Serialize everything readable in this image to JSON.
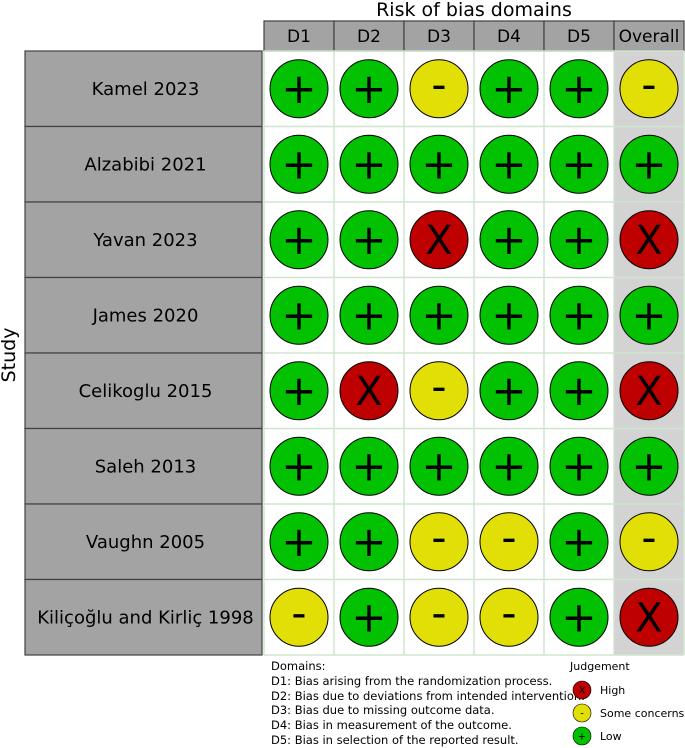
{
  "chart_data": {
    "type": "table",
    "title": "Risk of bias domains",
    "ylabel": "Study",
    "columns": [
      "D1",
      "D2",
      "D3",
      "D4",
      "D5",
      "Overall"
    ],
    "rows": [
      {
        "study": "Kamel 2023",
        "judgements": [
          "Low",
          "Low",
          "Some concerns",
          "Low",
          "Low",
          "Some concerns"
        ]
      },
      {
        "study": "Alzabibi 2021",
        "judgements": [
          "Low",
          "Low",
          "Low",
          "Low",
          "Low",
          "Low"
        ]
      },
      {
        "study": "Yavan 2023",
        "judgements": [
          "Low",
          "Low",
          "High",
          "Low",
          "Low",
          "High"
        ]
      },
      {
        "study": "James 2020",
        "judgements": [
          "Low",
          "Low",
          "Low",
          "Low",
          "Low",
          "Low"
        ]
      },
      {
        "study": "Celikoglu 2015",
        "judgements": [
          "Low",
          "High",
          "Some concerns",
          "Low",
          "Low",
          "High"
        ]
      },
      {
        "study": "Saleh 2013",
        "judgements": [
          "Low",
          "Low",
          "Low",
          "Low",
          "Low",
          "Low"
        ]
      },
      {
        "study": "Vaughn 2005",
        "judgements": [
          "Low",
          "Low",
          "Some concerns",
          "Some concerns",
          "Low",
          "Some concerns"
        ]
      },
      {
        "study": "Kiliçoğlu and Kirliç 1998",
        "judgements": [
          "Some concerns",
          "Low",
          "Some concerns",
          "Some concerns",
          "Low",
          "High"
        ]
      }
    ],
    "judgement_styles": {
      "High": {
        "symbol": "X",
        "color": "#BF0000"
      },
      "Some concerns": {
        "symbol": "-",
        "color": "#E2DF07"
      },
      "Low": {
        "symbol": "+",
        "color": "#02C100"
      }
    }
  },
  "domains_legend": {
    "title": "Domains:",
    "items": [
      "D1: Bias arising from the randomization process.",
      "D2: Bias due to deviations from intended intervention.",
      "D3: Bias due to missing outcome data.",
      "D4: Bias in measurement of the outcome.",
      "D5: Bias in selection of the reported result."
    ]
  },
  "judgement_legend": {
    "title": "Judgement",
    "items": [
      {
        "symbol": "X",
        "label": "High",
        "color": "#BF0000"
      },
      {
        "symbol": "-",
        "label": "Some concerns",
        "color": "#E2DF07"
      },
      {
        "symbol": "+",
        "label": "Low",
        "color": "#02C100"
      }
    ]
  }
}
